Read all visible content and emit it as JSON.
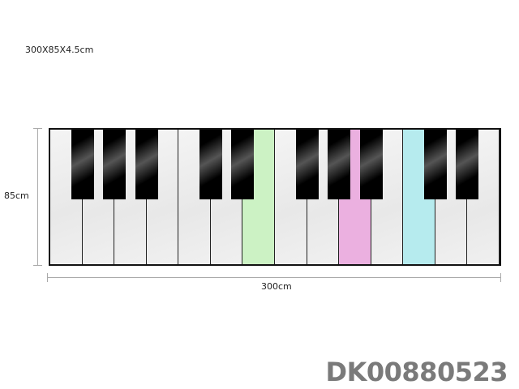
{
  "title": "300X85X4.5cm",
  "dimensions": {
    "height_label": "85cm",
    "width_label": "300cm"
  },
  "product_code": "DK00880523",
  "keyboard": {
    "white_key_count": 14,
    "black_keys_after_white": [
      1,
      2,
      3,
      5,
      6,
      8,
      9,
      10,
      12,
      13
    ],
    "highlighted_keys": [
      {
        "index": 7,
        "color": "#ccf2c4"
      },
      {
        "index": 10,
        "color": "#ebb0e0"
      },
      {
        "index": 12,
        "color": "#b6ebee"
      }
    ]
  }
}
